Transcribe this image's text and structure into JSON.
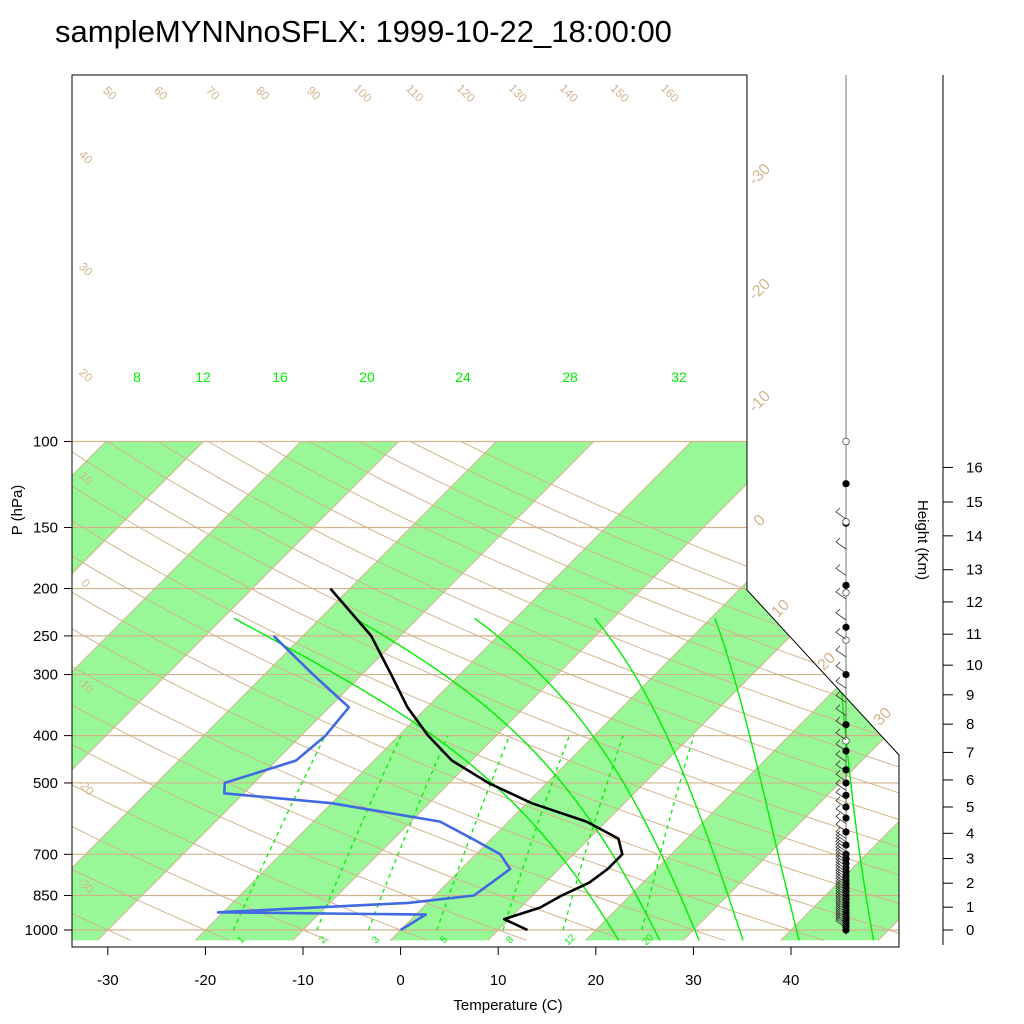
{
  "title": "sampleMYNNnoSFLX: 1999-10-22_18:00:00",
  "colors": {
    "band": "#98f898",
    "isotherm_tan": "#d2b48c",
    "moist_adiabat": "#00ee00",
    "temperature": "#000000",
    "dewpoint": "#4169e1"
  },
  "chart_data": {
    "type": "line",
    "subtype": "skew-t log-p",
    "xlabel": "Temperature (C)",
    "ylabel": "P (hPa)",
    "y2label": "Height (Km)",
    "x_ticks": [
      -30,
      -20,
      -10,
      0,
      10,
      20,
      30,
      40
    ],
    "p_ticks": [
      100,
      150,
      200,
      250,
      300,
      400,
      500,
      700,
      850,
      1000
    ],
    "height_ticks": [
      0,
      1,
      2,
      3,
      4,
      5,
      6,
      7,
      8,
      9,
      10,
      11,
      12,
      13,
      14,
      15,
      16
    ],
    "height_tick_pressures": [
      1000,
      898,
      802,
      714,
      634,
      560,
      493,
      433,
      379,
      330,
      287,
      248,
      213,
      183,
      156,
      133,
      113
    ],
    "x_range": [
      -34,
      50
    ],
    "p_range": [
      1050,
      100
    ],
    "isotherm_labels": [
      -30,
      -20,
      -10,
      0,
      10,
      20,
      30
    ],
    "dry_adiabat_labels": [
      -30,
      -20,
      -10,
      0,
      10,
      20,
      30,
      40,
      50,
      60,
      70,
      80,
      90,
      100,
      110,
      120,
      130,
      140,
      150,
      160
    ],
    "moist_adiabat_labels": [
      8,
      12,
      16,
      20,
      24,
      28,
      32
    ],
    "mixing_ratio_labels": [
      "1",
      "2",
      "3",
      "5",
      "8",
      "12",
      "20"
    ],
    "series": [
      {
        "name": "temperature",
        "points": [
          [
            1000,
            13.0
          ],
          [
            950,
            9.5
          ],
          [
            900,
            12.0
          ],
          [
            850,
            13.0
          ],
          [
            800,
            14.5
          ],
          [
            750,
            15.0
          ],
          [
            700,
            15.0
          ],
          [
            650,
            13.0
          ],
          [
            600,
            8.0
          ],
          [
            550,
            0.5
          ],
          [
            500,
            -6.0
          ],
          [
            450,
            -12.0
          ],
          [
            400,
            -17.0
          ],
          [
            350,
            -22.0
          ],
          [
            300,
            -27.0
          ],
          [
            250,
            -33.0
          ],
          [
            200,
            -42.0
          ]
        ]
      },
      {
        "name": "dewpoint",
        "points": [
          [
            1000,
            0.0
          ],
          [
            930,
            1.0
          ],
          [
            920,
            -20.5
          ],
          [
            880,
            -2.0
          ],
          [
            850,
            4.0
          ],
          [
            800,
            4.5
          ],
          [
            750,
            5.0
          ],
          [
            700,
            2.5
          ],
          [
            650,
            -2.0
          ],
          [
            600,
            -7.0
          ],
          [
            550,
            -20.0
          ],
          [
            525,
            -32.0
          ],
          [
            500,
            -33.0
          ],
          [
            450,
            -28.0
          ],
          [
            400,
            -27.5
          ],
          [
            350,
            -28.0
          ],
          [
            300,
            -35.0
          ],
          [
            250,
            -43.0
          ]
        ]
      }
    ]
  }
}
